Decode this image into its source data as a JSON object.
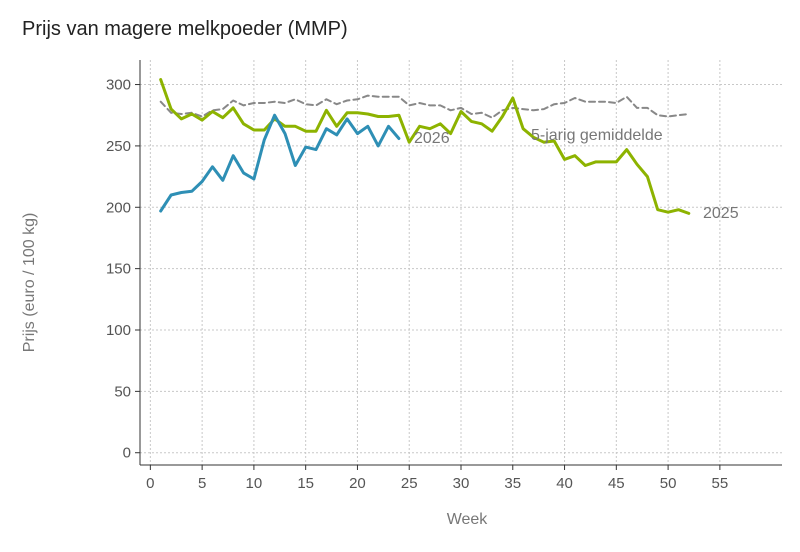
{
  "chart_data": {
    "type": "line",
    "title": "Prijs van magere melkpoeder (MMP)",
    "xlabel": "Week",
    "ylabel": "Prijs (euro / 100 kg)",
    "xlim": [
      -1,
      61
    ],
    "ylim": [
      -10,
      320
    ],
    "xticks": [
      0,
      5,
      10,
      15,
      20,
      25,
      30,
      35,
      40,
      45,
      50,
      55
    ],
    "yticks": [
      0,
      50,
      100,
      150,
      200,
      250,
      300
    ],
    "grid": true,
    "series": [
      {
        "name": "5-jarig gemiddelde",
        "color": "#888888",
        "dash": "dashed",
        "x": [
          1,
          2,
          3,
          4,
          5,
          6,
          7,
          8,
          9,
          10,
          11,
          12,
          13,
          14,
          15,
          16,
          17,
          18,
          19,
          20,
          21,
          22,
          23,
          24,
          25,
          26,
          27,
          28,
          29,
          30,
          31,
          32,
          33,
          34,
          35,
          36,
          37,
          38,
          39,
          40,
          41,
          42,
          43,
          44,
          45,
          46,
          47,
          48,
          49,
          50,
          51,
          52
        ],
        "values": [
          286,
          277,
          276,
          277,
          274,
          279,
          280,
          287,
          283,
          285,
          285,
          286,
          285,
          288,
          284,
          283,
          288,
          284,
          287,
          288,
          291,
          290,
          290,
          290,
          283,
          285,
          283,
          283,
          279,
          281,
          276,
          277,
          273,
          279,
          281,
          280,
          279,
          280,
          284,
          285,
          289,
          286,
          286,
          286,
          285,
          290,
          281,
          281,
          275,
          274,
          275,
          276
        ]
      },
      {
        "name": "2025",
        "color": "#8db300",
        "dash": "solid",
        "x": [
          1,
          2,
          3,
          4,
          5,
          6,
          7,
          8,
          9,
          10,
          11,
          12,
          13,
          14,
          15,
          16,
          17,
          18,
          19,
          20,
          21,
          22,
          23,
          24,
          25,
          26,
          27,
          28,
          29,
          30,
          31,
          32,
          33,
          34,
          35,
          36,
          37,
          38,
          39,
          40,
          41,
          42,
          43,
          44,
          45,
          46,
          47,
          48,
          49,
          50,
          51,
          52
        ],
        "values": [
          304,
          280,
          272,
          276,
          271,
          278,
          273,
          281,
          268,
          263,
          263,
          272,
          266,
          266,
          262,
          262,
          279,
          266,
          277,
          277,
          276,
          274,
          274,
          275,
          253,
          266,
          264,
          268,
          260,
          278,
          270,
          268,
          262,
          274,
          289,
          264,
          257,
          253,
          254,
          239,
          242,
          234,
          237,
          237,
          237,
          247,
          235,
          225,
          198,
          196,
          198,
          195
        ]
      },
      {
        "name": "2026",
        "color": "#2e8fb5",
        "dash": "solid",
        "x": [
          1,
          2,
          3,
          4,
          5,
          6,
          7,
          8,
          9,
          10,
          11,
          12,
          13,
          14,
          15,
          16,
          17,
          18,
          19,
          20,
          21,
          22,
          23,
          24
        ],
        "values": [
          197,
          210,
          212,
          213,
          221,
          233,
          222,
          242,
          228,
          223,
          255,
          275,
          260,
          234,
          249,
          247,
          264,
          259,
          272,
          260,
          266,
          250,
          266,
          256
        ]
      }
    ]
  }
}
